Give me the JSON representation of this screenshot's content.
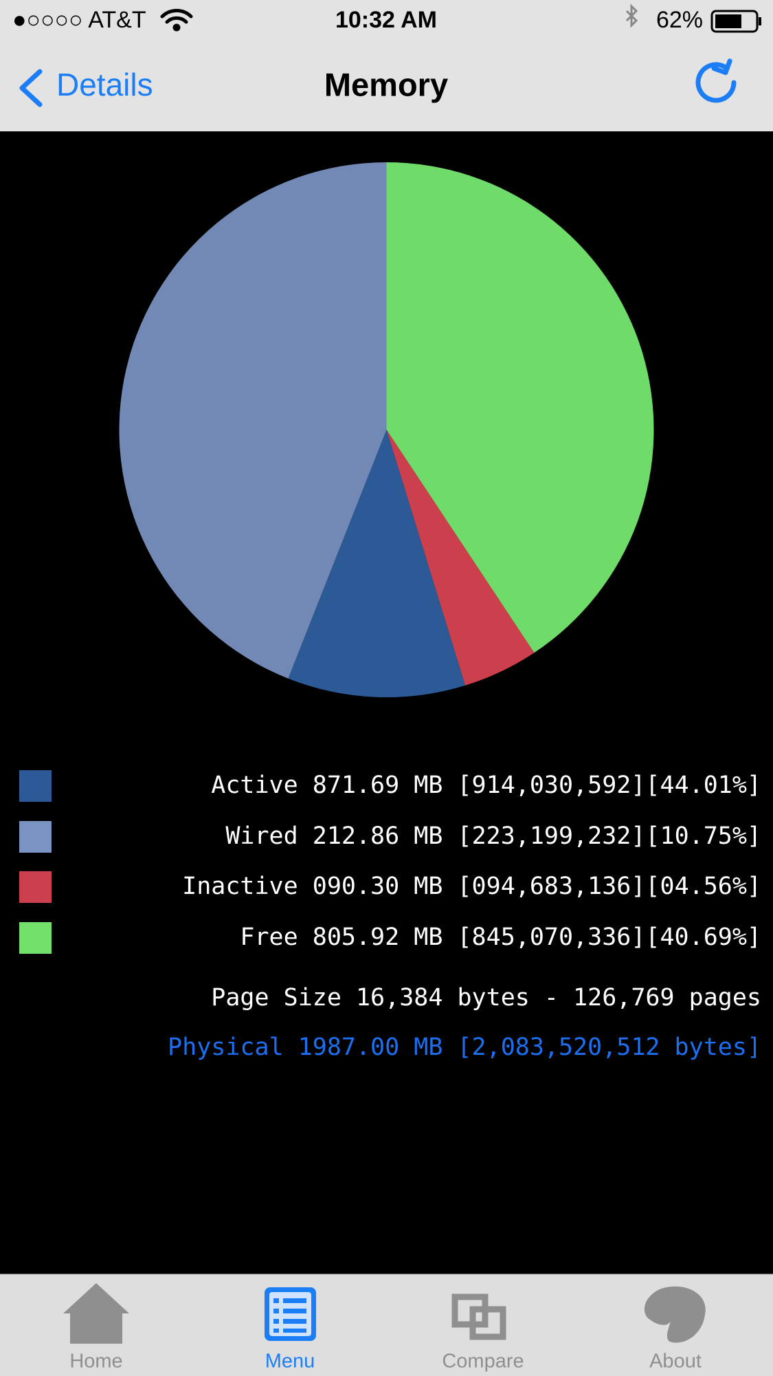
{
  "status_bar": {
    "carrier": "●○○○○ AT&T",
    "time": "10:32 AM",
    "battery": "62%"
  },
  "nav_bar": {
    "back": "Details",
    "title": "Memory"
  },
  "chart_data": {
    "type": "pie",
    "values": [
      40.69,
      4.56,
      10.75,
      44.01
    ],
    "colors": [
      "#6fdc6a",
      "#cc3f4c",
      "#2b5a96",
      "#7289b6"
    ]
  },
  "legend": {
    "items": [
      {
        "text": "Active 871.69 MB [914,030,592][44.01%]",
        "color": "#2b5a96"
      },
      {
        "text": "Wired 212.86 MB [223,199,232][10.75%]",
        "color": "#7b93c0"
      },
      {
        "text": "Inactive 090.30 MB [094,683,136][04.56%]",
        "color": "#cc3f4c"
      },
      {
        "text": "Free 805.92 MB [845,070,336][40.69%]",
        "color": "#74e06c"
      }
    ]
  },
  "page_size": "Page Size 16,384 bytes - 126,769 pages",
  "physical": "Physical 1987.00 MB [2,083,520,512 bytes]",
  "tab_bar": {
    "tabs": [
      "Home",
      "Menu",
      "Compare",
      "About"
    ]
  }
}
